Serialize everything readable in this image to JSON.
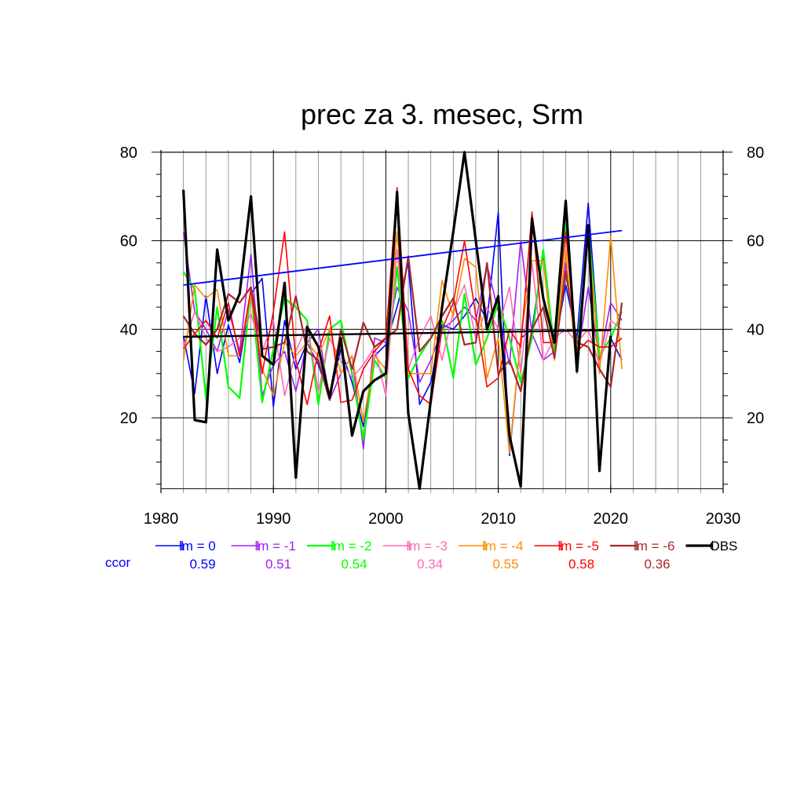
{
  "chart_data": {
    "type": "line",
    "title": "prec za 3. mesec, Srm",
    "xlabel": "",
    "ylabel": "",
    "xlim": [
      1980,
      2030
    ],
    "ylim": [
      3,
      80.5
    ],
    "x_ticks": [
      1980,
      1990,
      2000,
      2010,
      2020,
      2030
    ],
    "y_ticks": [
      20,
      40,
      60,
      80
    ],
    "grid": true,
    "legend_position": "bottom",
    "ccor_label": "ccor",
    "years": [
      1982,
      1983,
      1984,
      1985,
      1986,
      1987,
      1988,
      1989,
      1990,
      1991,
      1992,
      1993,
      1994,
      1995,
      1996,
      1997,
      1998,
      1999,
      2000,
      2001,
      2002,
      2003,
      2004,
      2005,
      2006,
      2007,
      2008,
      2009,
      2010,
      2011,
      2012,
      2013,
      2014,
      2015,
      2016,
      2017,
      2018,
      2019,
      2020,
      2021
    ],
    "series": [
      {
        "name": "lm = 0",
        "color": "#0000ff",
        "ccor": "0.59",
        "width": 1.6,
        "values": [
          38.5,
          25.5,
          47.5,
          30,
          41,
          32.5,
          48,
          51.5,
          22.5,
          42,
          31,
          37,
          32,
          24.5,
          35.5,
          28,
          18,
          34,
          36.5,
          45,
          55,
          23,
          28,
          41,
          40,
          43,
          47,
          42,
          66.5,
          11.5,
          38,
          40,
          57,
          36,
          50,
          38,
          68.5,
          34,
          38,
          33
        ]
      },
      {
        "name": "lm = -1",
        "color": "#a020f0",
        "ccor": "0.51",
        "width": 1.6,
        "values": [
          62,
          44,
          40,
          35,
          44.5,
          35,
          57,
          25,
          32,
          35,
          26,
          37,
          40,
          24,
          30,
          34,
          13,
          38,
          37,
          49.5,
          44,
          28,
          33,
          40,
          42,
          45,
          42,
          54.5,
          44,
          32,
          60,
          39,
          33,
          35,
          55,
          33,
          49.5,
          33,
          46,
          42
        ]
      },
      {
        "name": "lm = -2",
        "color": "#00ff00",
        "ccor": "0.54",
        "width": 2.2,
        "values": [
          53,
          49,
          24.5,
          45,
          27,
          24.5,
          49,
          23.5,
          35.5,
          47,
          45,
          42,
          23,
          40,
          42,
          30,
          15,
          33,
          29,
          54,
          29,
          34,
          38,
          42,
          29,
          48,
          32,
          38,
          46,
          38,
          28,
          38,
          58,
          35,
          64,
          34,
          63,
          34,
          38,
          44
        ]
      },
      {
        "name": "lm = -3",
        "color": "#ff69b4",
        "ccor": "0.34",
        "width": 1.6,
        "values": [
          36,
          44,
          38,
          35,
          36,
          38,
          43.5,
          35,
          42,
          25,
          35,
          41,
          26,
          38,
          33,
          29,
          32,
          36,
          25,
          58,
          31,
          38,
          43,
          33,
          44,
          50,
          38,
          45,
          40,
          49.5,
          30,
          55,
          33,
          38,
          40,
          37,
          40,
          32,
          42,
          40
        ]
      },
      {
        "name": "lm = -4",
        "color": "#ff8c00",
        "ccor": "0.55",
        "width": 1.6,
        "values": [
          33,
          50,
          47,
          49,
          34,
          34,
          48,
          31,
          25,
          37,
          34,
          37,
          34,
          40,
          30,
          34,
          19,
          34,
          31,
          62,
          30,
          30,
          30,
          51,
          43,
          56,
          54,
          29,
          38,
          12,
          38,
          55.5,
          55.5,
          33,
          58,
          30,
          62,
          30,
          61,
          31
        ]
      },
      {
        "name": "lm = -5",
        "color": "#ff0000",
        "ccor": "0.58",
        "width": 1.6,
        "values": [
          35.5,
          39,
          42,
          38,
          46,
          34,
          49,
          30,
          44,
          62,
          33,
          23,
          35,
          43,
          23.5,
          24,
          31,
          35,
          38,
          72,
          31,
          25,
          23,
          40,
          46,
          60,
          43,
          27,
          29,
          40,
          36,
          66.5,
          37,
          37,
          62,
          35,
          37.5,
          36,
          36,
          38
        ]
      },
      {
        "name": "lm = -6",
        "color": "#a52a2a",
        "ccor": "0.36",
        "width": 2.2,
        "values": [
          43,
          39,
          36.5,
          40,
          48,
          46,
          49.5,
          35.5,
          36,
          37,
          47.5,
          35,
          33,
          24,
          40,
          31,
          41.5,
          36,
          38,
          40,
          56.5,
          35,
          38,
          43,
          47,
          36.5,
          37,
          55,
          30,
          33,
          26,
          40,
          45,
          33.5,
          53,
          37,
          36,
          31,
          27,
          46
        ]
      },
      {
        "name": "OBS",
        "color": "#000000",
        "ccor": "",
        "width": 3.2,
        "values": [
          71.5,
          19.5,
          19,
          58,
          42,
          48,
          70,
          34,
          32,
          50.5,
          6.5,
          40.5,
          36,
          24.5,
          38,
          16,
          26,
          28.5,
          30,
          71,
          21,
          4,
          24,
          45,
          62,
          80,
          60,
          40,
          47.5,
          16,
          4.5,
          65,
          47,
          37,
          69,
          30.5,
          63.5,
          8,
          38.5,
          null
        ]
      }
    ],
    "trend_lines": [
      {
        "series": "lm = 0",
        "color": "#0000ff",
        "x": [
          1982,
          2021
        ],
        "y": [
          50,
          62.3
        ]
      },
      {
        "series": "OBS",
        "color": "#000000",
        "x": [
          1982,
          2020
        ],
        "y": [
          38.3,
          39.8
        ]
      }
    ]
  }
}
